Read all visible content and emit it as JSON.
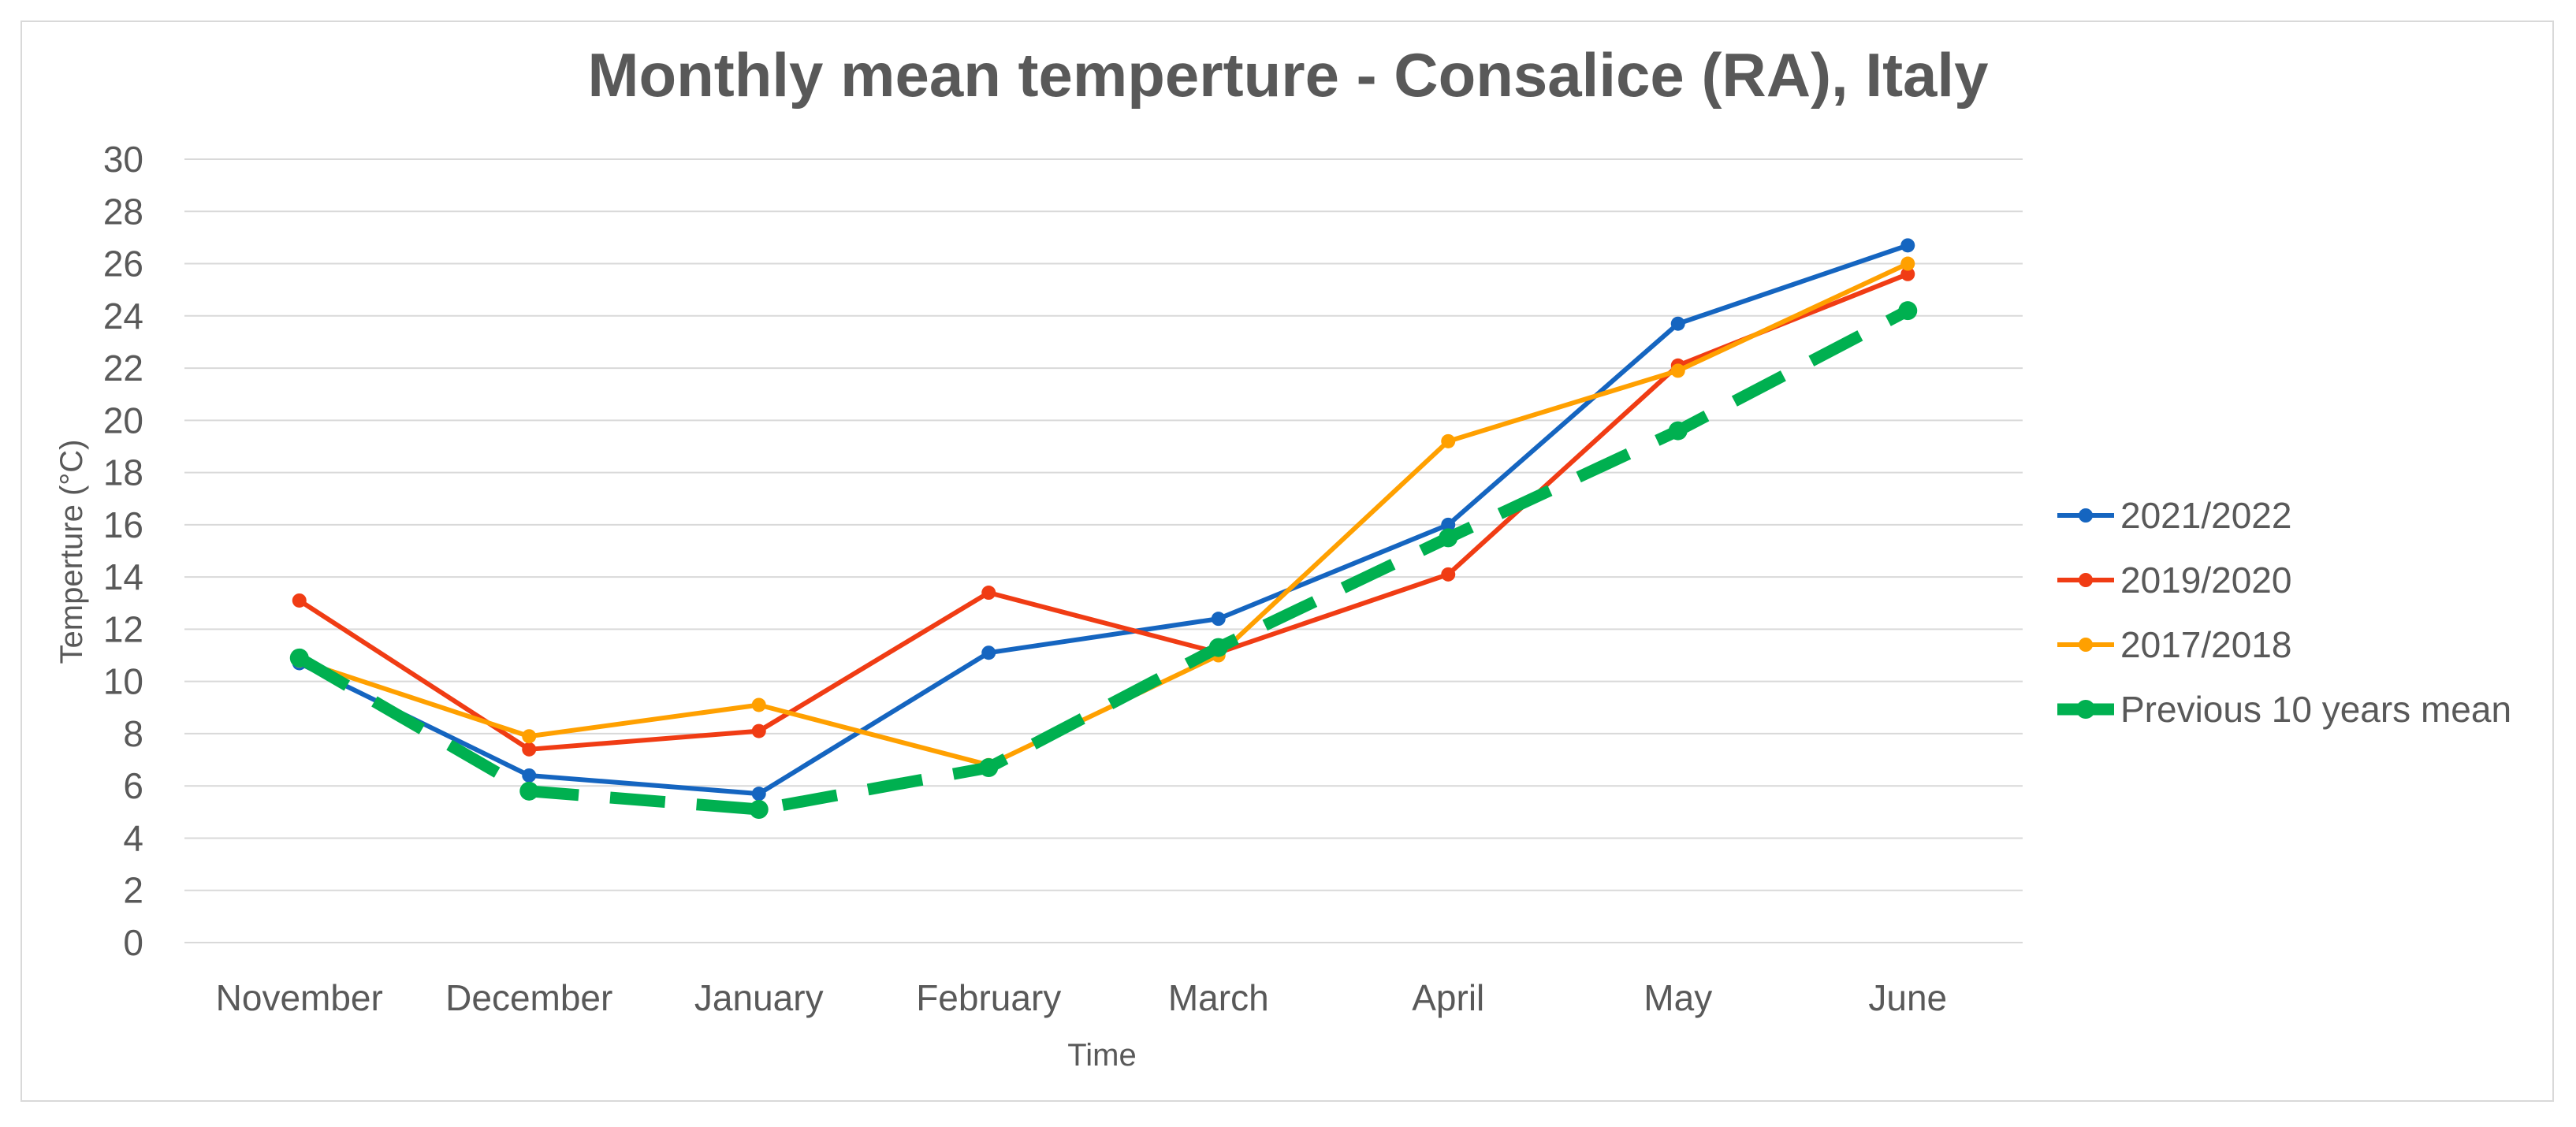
{
  "chart_data": {
    "type": "line",
    "title": "Monthly mean temperture - Consalice (RA), Italy",
    "xlabel": "Time",
    "ylabel": "Temperture (°C)",
    "ylim": [
      0,
      30
    ],
    "yticks": [
      "0",
      "2",
      "4",
      "6",
      "8",
      "10",
      "12",
      "14",
      "16",
      "18",
      "20",
      "22",
      "24",
      "26",
      "28",
      "30"
    ],
    "grid": true,
    "legend_position": "right",
    "categories": [
      "November",
      "December",
      "January",
      "February",
      "March",
      "April",
      "May",
      "June"
    ],
    "series": [
      {
        "name": "2021/2022",
        "color": "#1565C0",
        "style": "solid",
        "values": [
          10.7,
          6.4,
          5.7,
          11.1,
          12.4,
          16.0,
          23.7,
          26.7
        ]
      },
      {
        "name": "2019/2020",
        "color": "#F03C14",
        "style": "solid",
        "values": [
          13.1,
          7.4,
          8.1,
          13.4,
          11.1,
          14.1,
          22.1,
          25.6
        ]
      },
      {
        "name": "2017/2018",
        "color": "#FFA000",
        "style": "solid",
        "values": [
          10.8,
          7.9,
          9.1,
          6.8,
          11.0,
          19.2,
          21.9,
          26.0
        ]
      },
      {
        "name": "Previous 10 years mean",
        "color": "#00B050",
        "style": "dashed",
        "values": [
          10.9,
          5.8,
          5.1,
          6.7,
          11.3,
          15.5,
          19.6,
          24.2
        ]
      }
    ]
  }
}
